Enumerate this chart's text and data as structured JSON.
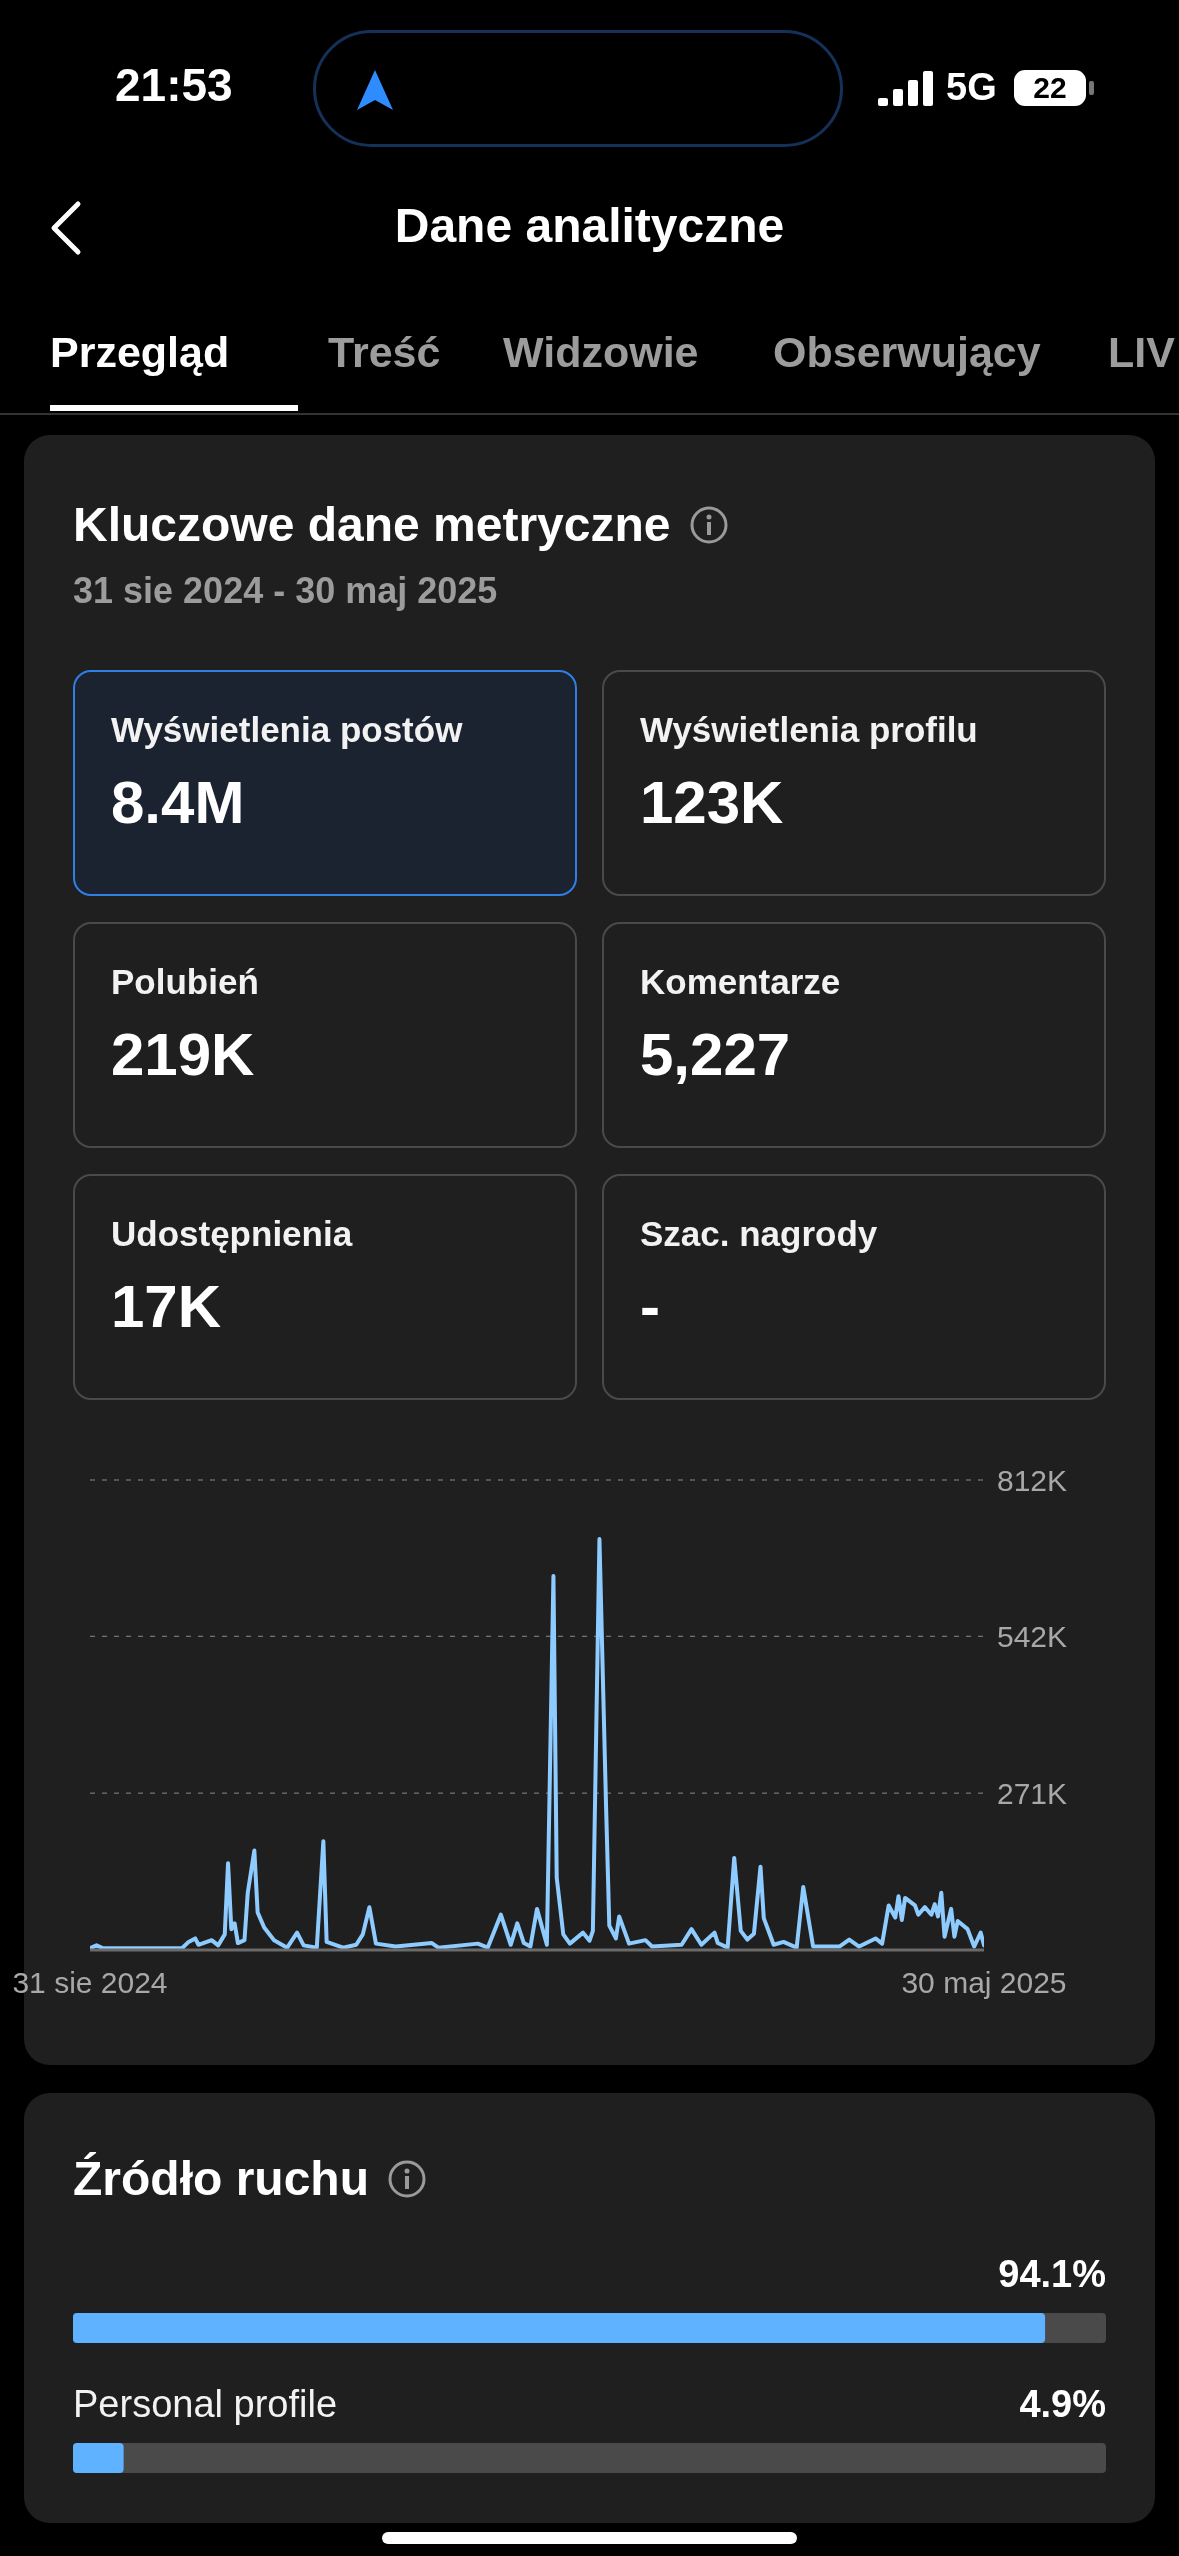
{
  "chart_data": [
    {
      "type": "other",
      "title": "Dane analityczne",
      "annotations": [
        "21:53",
        "5G",
        "22",
        "Przegląd",
        "Treść",
        "Widzowie",
        "Obserwujący",
        "LIV"
      ]
    },
    {
      "type": "line",
      "title": "Kluczowe dane metryczne",
      "subtitle": "31 sie 2024 - 30 maj 2025",
      "annotations": [
        "Wyświetlenia postów",
        "8.4M",
        "Wyświetlenia profilu",
        "123K",
        "Polubień",
        "219K",
        "Komentarze",
        "5,227",
        "Udostępnienia",
        "17K",
        "Szac. nagrody",
        "-"
      ],
      "x": [
        "2024-08-31",
        "2024-09-02",
        "2024-09-04",
        "2024-09-28",
        "2024-09-30",
        "2024-10-02",
        "2024-10-03",
        "2024-10-07",
        "2024-10-09",
        "2024-10-11",
        "2024-10-12",
        "2024-10-13",
        "2024-10-14",
        "2024-10-15",
        "2024-10-17",
        "2024-10-18",
        "2024-10-20",
        "2024-10-21",
        "2024-10-23",
        "2024-10-26",
        "2024-10-30",
        "2024-11-02",
        "2024-11-04",
        "2024-11-08",
        "2024-11-10",
        "2024-11-11",
        "2024-11-16",
        "2024-11-20",
        "2024-11-22",
        "2024-11-24",
        "2024-11-26",
        "2024-12-02",
        "2024-12-13",
        "2024-12-15",
        "2024-12-27",
        "2024-12-30",
        "2025-01-03",
        "2025-01-06",
        "2025-01-08",
        "2025-01-10",
        "2025-01-12",
        "2025-01-14",
        "2025-01-17",
        "2025-01-19",
        "2025-01-20",
        "2025-01-22",
        "2025-01-24",
        "2025-01-28",
        "2025-01-30",
        "2025-01-31",
        "2025-02-02",
        "2025-02-04",
        "2025-02-05",
        "2025-02-07",
        "2025-02-08",
        "2025-02-11",
        "2025-02-16",
        "2025-02-18",
        "2025-02-27",
        "2025-03-02",
        "2025-03-05",
        "2025-03-09",
        "2025-03-10",
        "2025-03-13",
        "2025-03-15",
        "2025-03-17",
        "2025-03-19",
        "2025-03-21",
        "2025-03-23",
        "2025-03-24",
        "2025-03-27",
        "2025-03-30",
        "2025-04-03",
        "2025-04-05",
        "2025-04-08",
        "2025-04-16",
        "2025-04-19",
        "2025-04-22",
        "2025-04-27",
        "2025-04-29",
        "2025-05-01",
        "2025-05-03",
        "2025-05-04",
        "2025-05-05",
        "2025-05-06",
        "2025-05-09",
        "2025-05-10",
        "2025-05-12",
        "2025-05-14",
        "2025-05-15",
        "2025-05-16",
        "2025-05-17",
        "2025-05-18",
        "2025-05-20",
        "2025-05-21",
        "2025-05-22",
        "2025-05-25",
        "2025-05-27",
        "2025-05-29",
        "2025-05-30"
      ],
      "series": [
        {
          "color": "#8ecbff",
          "values": [
            3,
            8,
            3,
            3,
            14,
            20,
            9,
            17,
            8,
            27,
            150,
            36,
            46,
            12,
            17,
            99,
            172,
            65,
            39,
            17,
            4,
            30,
            8,
            4,
            188,
            14,
            4,
            9,
            27,
            74,
            11,
            6,
            12,
            4,
            11,
            4,
            61,
            9,
            46,
            12,
            6,
            71,
            9,
            646,
            125,
            27,
            11,
            30,
            16,
            33,
            710,
            251,
            42,
            20,
            58,
            11,
            17,
            6,
            9,
            36,
            9,
            30,
            12,
            4,
            159,
            33,
            18,
            28,
            144,
            55,
            9,
            14,
            4,
            109,
            6,
            6,
            18,
            6,
            20,
            11,
            77,
            56,
            93,
            52,
            90,
            77,
            61,
            74,
            61,
            79,
            58,
            99,
            23,
            71,
            23,
            50,
            36,
            6,
            30,
            8
          ]
        }
      ],
      "xlim": [
        "2024-08-31",
        "2025-05-30"
      ],
      "xticks": [
        {
          "value": "2024-08-31",
          "label": "31 sie 2024"
        },
        {
          "value": "2025-05-30",
          "label": "30 maj 2025"
        }
      ],
      "ylim": [
        0,
        812
      ],
      "yticks": [
        {
          "value": 271,
          "label": "271K"
        },
        {
          "value": 542,
          "label": "542K"
        },
        {
          "value": 812,
          "label": "812K"
        }
      ],
      "grid": "y",
      "marker": "none",
      "line_style": "solid"
    },
    {
      "type": "bar",
      "orientation": "horizontal",
      "title": "Źródło ruchu",
      "categories": [
        null,
        "Personal profile"
      ],
      "values": [
        94.1,
        4.9
      ],
      "value_labels": [
        "94.1%",
        "4.9%"
      ],
      "color": "#5fb2ff",
      "xlim": [
        0,
        100
      ],
      "tick_labels": false
    }
  ]
}
